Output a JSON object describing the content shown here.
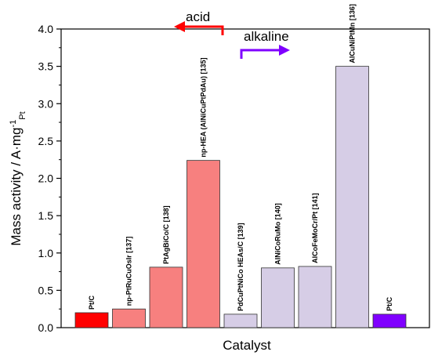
{
  "chart_data": {
    "type": "bar",
    "xlabel": "Catalyst",
    "ylabel": "Mass activity / A·mg",
    "ylabel_sup": "-1",
    "ylabel_sub": "Pt",
    "ylim": [
      0,
      4.0
    ],
    "yticks": [
      "0.0",
      "0.5",
      "1.0",
      "1.5",
      "2.0",
      "2.5",
      "3.0",
      "3.5",
      "4.0"
    ],
    "grid": false,
    "bars": [
      {
        "label": "Pt/C",
        "value": 0.2,
        "color": "#ff0000"
      },
      {
        "label": "np-PtRuCuOsIr [137]",
        "value": 0.25,
        "color": "#f7807f"
      },
      {
        "label": "PtAgBiCo/C [138]",
        "value": 0.81,
        "color": "#f7807f"
      },
      {
        "label": "np-HEA (AlNiCuPtPdAu) [135]",
        "value": 2.24,
        "color": "#f7807f"
      },
      {
        "label": "PdCuPtNiCo HEAs/C [139]",
        "value": 0.18,
        "color": "#d6cde6"
      },
      {
        "label": "AlNiCoRuMo [140]",
        "value": 0.8,
        "color": "#d6cde6"
      },
      {
        "label": "AlCoFeMoCr/Pt [141]",
        "value": 0.82,
        "color": "#d6cde6"
      },
      {
        "label": "AlCuNiPtMn [136]",
        "value": 3.5,
        "color": "#d6cde6"
      },
      {
        "label": "Pt/C",
        "value": 0.18,
        "color": "#8000ff"
      }
    ],
    "annotations": {
      "acid": {
        "text": "acid",
        "direction": "left",
        "color": "#ff0000"
      },
      "alkaline": {
        "text": "alkaline",
        "direction": "right",
        "color": "#7f00ff"
      }
    }
  }
}
